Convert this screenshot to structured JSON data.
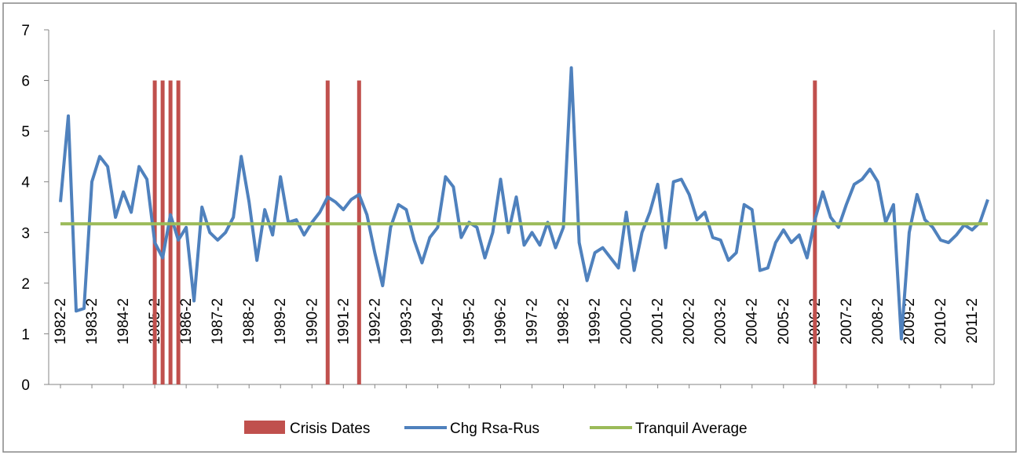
{
  "chart_data": {
    "type": "bar-line",
    "categories": [
      "1982-2",
      null,
      null,
      null,
      "1983-2",
      null,
      null,
      null,
      "1984-2",
      null,
      null,
      null,
      "1985-2",
      null,
      null,
      null,
      "1986-2",
      null,
      null,
      null,
      "1987-2",
      null,
      null,
      null,
      "1988-2",
      null,
      null,
      null,
      "1989-2",
      null,
      null,
      null,
      "1990-2",
      null,
      null,
      null,
      "1991-2",
      null,
      null,
      null,
      "1992-2",
      null,
      null,
      null,
      "1993-2",
      null,
      null,
      null,
      "1994-2",
      null,
      null,
      null,
      "1995-2",
      null,
      null,
      null,
      "1996-2",
      null,
      null,
      null,
      "1997-2",
      null,
      null,
      null,
      "1998-2",
      null,
      null,
      null,
      "1999-2",
      null,
      null,
      null,
      "2000-2",
      null,
      null,
      null,
      "2001-2",
      null,
      null,
      null,
      "2002-2",
      null,
      null,
      null,
      "2003-2",
      null,
      null,
      null,
      "2004-2",
      null,
      null,
      null,
      "2005-2",
      null,
      null,
      null,
      "2006-2",
      null,
      null,
      null,
      "2007-2",
      null,
      null,
      null,
      "2008-2",
      null,
      null,
      null,
      "2009-2",
      null,
      null,
      null,
      "2010-2",
      null,
      null,
      null,
      "2011-2",
      null,
      null
    ],
    "series": [
      {
        "name": "Crisis Dates",
        "type": "bar",
        "color": "#c0504d",
        "values": [
          null,
          null,
          null,
          null,
          null,
          null,
          null,
          null,
          null,
          null,
          null,
          null,
          6,
          6,
          6,
          6,
          null,
          null,
          null,
          null,
          null,
          null,
          null,
          null,
          null,
          null,
          null,
          null,
          null,
          null,
          null,
          null,
          null,
          null,
          6,
          null,
          null,
          null,
          6,
          null,
          null,
          null,
          null,
          null,
          null,
          null,
          null,
          null,
          null,
          null,
          null,
          null,
          null,
          null,
          null,
          null,
          null,
          null,
          null,
          null,
          null,
          null,
          null,
          null,
          null,
          null,
          null,
          null,
          null,
          null,
          null,
          null,
          null,
          null,
          null,
          null,
          null,
          null,
          null,
          null,
          null,
          null,
          null,
          null,
          null,
          null,
          null,
          null,
          null,
          null,
          null,
          null,
          null,
          null,
          null,
          null,
          6,
          null,
          null,
          null,
          null,
          null,
          null,
          null,
          null,
          null,
          null,
          null,
          null,
          null,
          null,
          null,
          null,
          null,
          null,
          null,
          null,
          null,
          null
        ]
      },
      {
        "name": "Chg Rsa-Rus",
        "type": "line",
        "color": "#4f81bd",
        "values": [
          3.6,
          5.3,
          1.45,
          1.5,
          4.0,
          4.5,
          4.3,
          3.3,
          3.8,
          3.4,
          4.3,
          4.05,
          2.8,
          2.5,
          3.35,
          2.85,
          3.1,
          1.65,
          3.5,
          3.0,
          2.85,
          3.0,
          3.3,
          4.5,
          3.6,
          2.45,
          3.45,
          2.95,
          4.1,
          3.2,
          3.25,
          2.95,
          3.2,
          3.4,
          3.7,
          3.6,
          3.45,
          3.65,
          3.75,
          3.35,
          2.6,
          1.95,
          3.1,
          3.55,
          3.45,
          2.85,
          2.4,
          2.9,
          3.1,
          4.1,
          3.9,
          2.9,
          3.2,
          3.1,
          2.5,
          3.0,
          4.05,
          3.0,
          3.7,
          2.75,
          3.0,
          2.75,
          3.2,
          2.7,
          3.1,
          6.25,
          2.8,
          2.05,
          2.6,
          2.7,
          2.5,
          2.3,
          3.4,
          2.25,
          3.0,
          3.4,
          3.95,
          2.7,
          4.0,
          4.05,
          3.75,
          3.25,
          3.4,
          2.9,
          2.85,
          2.45,
          2.6,
          3.55,
          3.45,
          2.25,
          2.3,
          2.8,
          3.05,
          2.8,
          2.95,
          2.5,
          3.25,
          3.8,
          3.3,
          3.1,
          3.55,
          3.95,
          4.05,
          4.25,
          4.0,
          3.2,
          3.55,
          0.9,
          3.0,
          3.75,
          3.25,
          3.1,
          2.85,
          2.8,
          2.95,
          3.15,
          3.05,
          3.2,
          3.65
        ]
      },
      {
        "name": "Tranquil Average",
        "type": "line",
        "color": "#9bbb59",
        "values": [
          3.17,
          3.17,
          3.17,
          3.17,
          3.17,
          3.17,
          3.17,
          3.17,
          3.17,
          3.17,
          3.17,
          3.17,
          3.17,
          3.17,
          3.17,
          3.17,
          3.17,
          3.17,
          3.17,
          3.17,
          3.17,
          3.17,
          3.17,
          3.17,
          3.17,
          3.17,
          3.17,
          3.17,
          3.17,
          3.17,
          3.17,
          3.17,
          3.17,
          3.17,
          3.17,
          3.17,
          3.17,
          3.17,
          3.17,
          3.17,
          3.17,
          3.17,
          3.17,
          3.17,
          3.17,
          3.17,
          3.17,
          3.17,
          3.17,
          3.17,
          3.17,
          3.17,
          3.17,
          3.17,
          3.17,
          3.17,
          3.17,
          3.17,
          3.17,
          3.17,
          3.17,
          3.17,
          3.17,
          3.17,
          3.17,
          3.17,
          3.17,
          3.17,
          3.17,
          3.17,
          3.17,
          3.17,
          3.17,
          3.17,
          3.17,
          3.17,
          3.17,
          3.17,
          3.17,
          3.17,
          3.17,
          3.17,
          3.17,
          3.17,
          3.17,
          3.17,
          3.17,
          3.17,
          3.17,
          3.17,
          3.17,
          3.17,
          3.17,
          3.17,
          3.17,
          3.17,
          3.17,
          3.17,
          3.17,
          3.17,
          3.17,
          3.17,
          3.17,
          3.17,
          3.17,
          3.17,
          3.17,
          3.17,
          3.17,
          3.17,
          3.17,
          3.17,
          3.17,
          3.17,
          3.17,
          3.17,
          3.17,
          3.17,
          3.17
        ]
      }
    ],
    "ylim": [
      0,
      7
    ],
    "yticks": [
      0,
      1,
      2,
      3,
      4,
      5,
      6,
      7
    ],
    "legend": "bottom"
  }
}
